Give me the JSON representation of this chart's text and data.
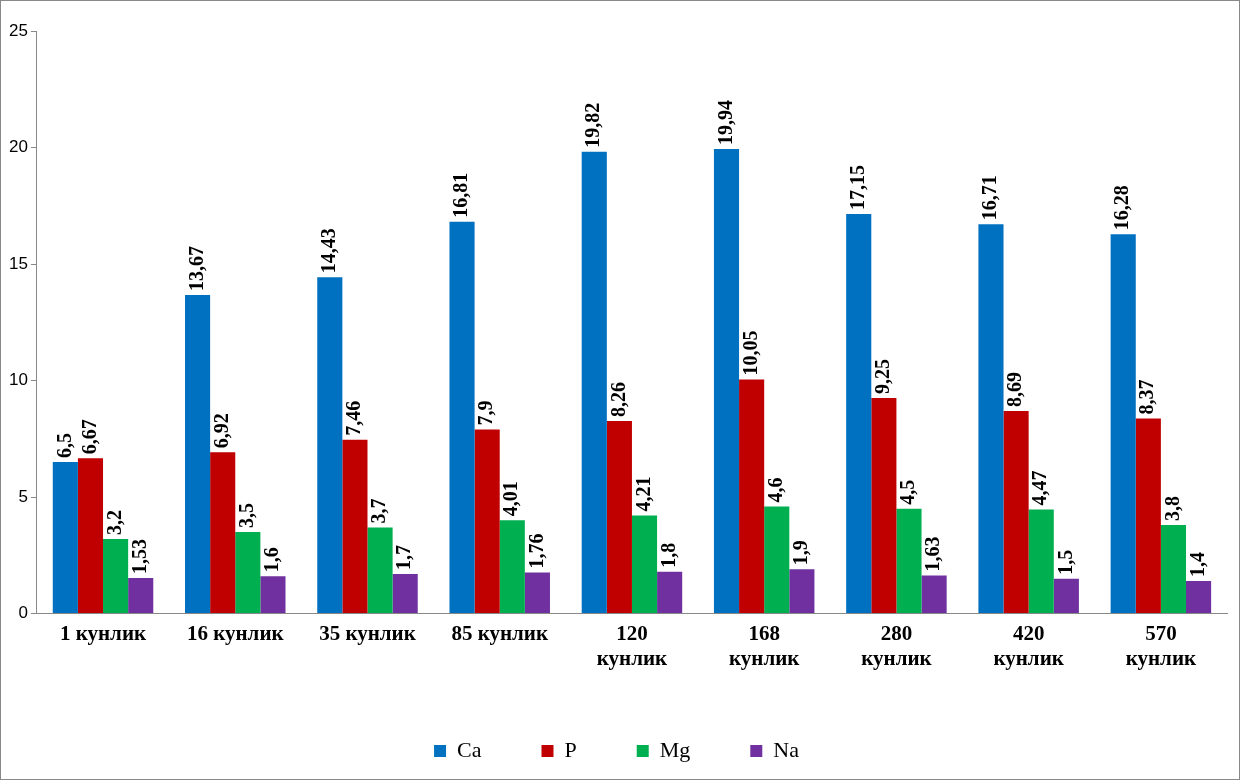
{
  "chart_data": {
    "type": "bar",
    "categories": [
      "1 кунлик",
      "16 кунлик",
      "35 кунлик",
      "85 кунлик",
      "120 кунлик",
      "168 кунлик",
      "280 кунлик",
      "420 кунлик",
      "570 кунлик"
    ],
    "series": [
      {
        "name": "Ca",
        "color": "#0070c0",
        "values": [
          6.5,
          13.67,
          14.43,
          16.81,
          19.82,
          19.94,
          17.15,
          16.71,
          16.28
        ],
        "value_labels": [
          "6,5",
          "13,67",
          "14,43",
          "16,81",
          "19,82",
          "19,94",
          "17,15",
          "16,71",
          "16,28"
        ]
      },
      {
        "name": "P",
        "color": "#c00000",
        "values": [
          6.67,
          6.92,
          7.46,
          7.9,
          8.26,
          10.05,
          9.25,
          8.69,
          8.37
        ],
        "value_labels": [
          "6,67",
          "6,92",
          "7,46",
          "7,9",
          "8,26",
          "10,05",
          "9,25",
          "8,69",
          "8,37"
        ]
      },
      {
        "name": "Mg",
        "color": "#00b050",
        "values": [
          3.2,
          3.5,
          3.7,
          4.01,
          4.21,
          4.6,
          4.5,
          4.47,
          3.8
        ],
        "value_labels": [
          "3,2",
          "3,5",
          "3,7",
          "4,01",
          "4,21",
          "4,6",
          "4,5",
          "4,47",
          "3,8"
        ]
      },
      {
        "name": "Na",
        "color": "#7030a0",
        "values": [
          1.53,
          1.6,
          1.7,
          1.76,
          1.8,
          1.9,
          1.63,
          1.5,
          1.4
        ],
        "value_labels": [
          "1,53",
          "1,6",
          "1,7",
          "1,76",
          "1,8",
          "1,9",
          "1,63",
          "1,5",
          "1,4"
        ]
      }
    ],
    "ylim": [
      0,
      25
    ],
    "yticks": [
      0,
      5,
      10,
      15,
      20,
      25
    ],
    "grid": false,
    "legend": "bottom"
  }
}
